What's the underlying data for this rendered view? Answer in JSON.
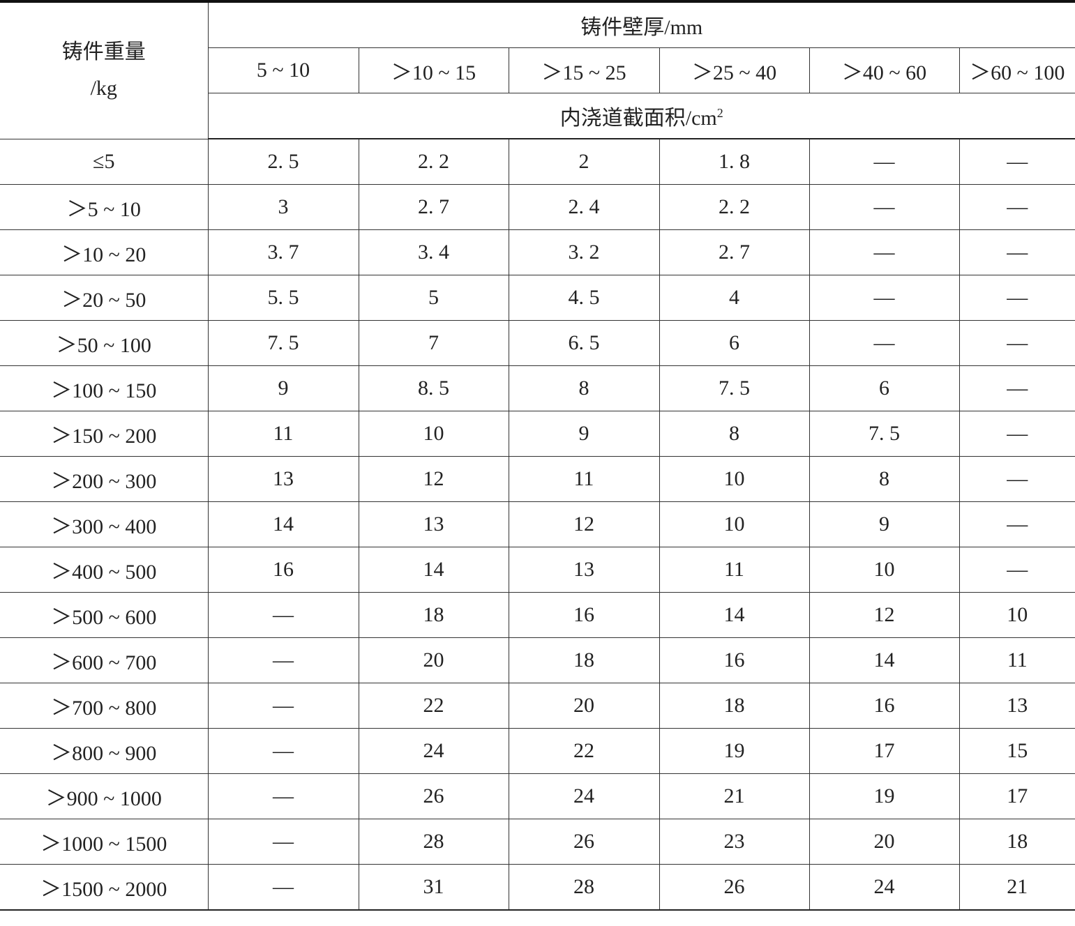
{
  "header": {
    "weight_label": "铸件重量",
    "weight_unit": "/kg",
    "thickness_label": "铸件壁厚/mm",
    "thickness_ranges": [
      "5 ~ 10",
      "＞10 ~ 15",
      "＞15 ~ 25",
      "＞25 ~ 40",
      "＞40 ~ 60",
      "＞60 ~ 100"
    ],
    "area_label": "内浇道截面积/cm",
    "area_exp": "2"
  },
  "rows": [
    {
      "weight": "≤5",
      "values": [
        "2. 5",
        "2. 2",
        "2",
        "1. 8",
        "—",
        "—"
      ]
    },
    {
      "weight": "＞5 ~ 10",
      "values": [
        "3",
        "2. 7",
        "2. 4",
        "2. 2",
        "—",
        "—"
      ]
    },
    {
      "weight": "＞10 ~ 20",
      "values": [
        "3. 7",
        "3. 4",
        "3. 2",
        "2. 7",
        "—",
        "—"
      ]
    },
    {
      "weight": "＞20 ~ 50",
      "values": [
        "5. 5",
        "5",
        "4. 5",
        "4",
        "—",
        "—"
      ]
    },
    {
      "weight": "＞50 ~ 100",
      "values": [
        "7. 5",
        "7",
        "6. 5",
        "6",
        "—",
        "—"
      ]
    },
    {
      "weight": "＞100 ~ 150",
      "values": [
        "9",
        "8. 5",
        "8",
        "7. 5",
        "6",
        "—"
      ]
    },
    {
      "weight": "＞150 ~ 200",
      "values": [
        "11",
        "10",
        "9",
        "8",
        "7. 5",
        "—"
      ]
    },
    {
      "weight": "＞200 ~ 300",
      "values": [
        "13",
        "12",
        "11",
        "10",
        "8",
        "—"
      ]
    },
    {
      "weight": "＞300 ~ 400",
      "values": [
        "14",
        "13",
        "12",
        "10",
        "9",
        "—"
      ]
    },
    {
      "weight": "＞400 ~ 500",
      "values": [
        "16",
        "14",
        "13",
        "11",
        "10",
        "—"
      ]
    },
    {
      "weight": "＞500 ~ 600",
      "values": [
        "—",
        "18",
        "16",
        "14",
        "12",
        "10"
      ]
    },
    {
      "weight": "＞600 ~ 700",
      "values": [
        "—",
        "20",
        "18",
        "16",
        "14",
        "11"
      ]
    },
    {
      "weight": "＞700 ~ 800",
      "values": [
        "—",
        "22",
        "20",
        "18",
        "16",
        "13"
      ]
    },
    {
      "weight": "＞800 ~ 900",
      "values": [
        "—",
        "24",
        "22",
        "19",
        "17",
        "15"
      ]
    },
    {
      "weight": "＞900 ~ 1000",
      "values": [
        "—",
        "26",
        "24",
        "21",
        "19",
        "17"
      ]
    },
    {
      "weight": "＞1000 ~ 1500",
      "values": [
        "—",
        "28",
        "26",
        "23",
        "20",
        "18"
      ]
    },
    {
      "weight": "＞1500 ~ 2000",
      "values": [
        "—",
        "31",
        "28",
        "26",
        "24",
        "21"
      ]
    }
  ]
}
